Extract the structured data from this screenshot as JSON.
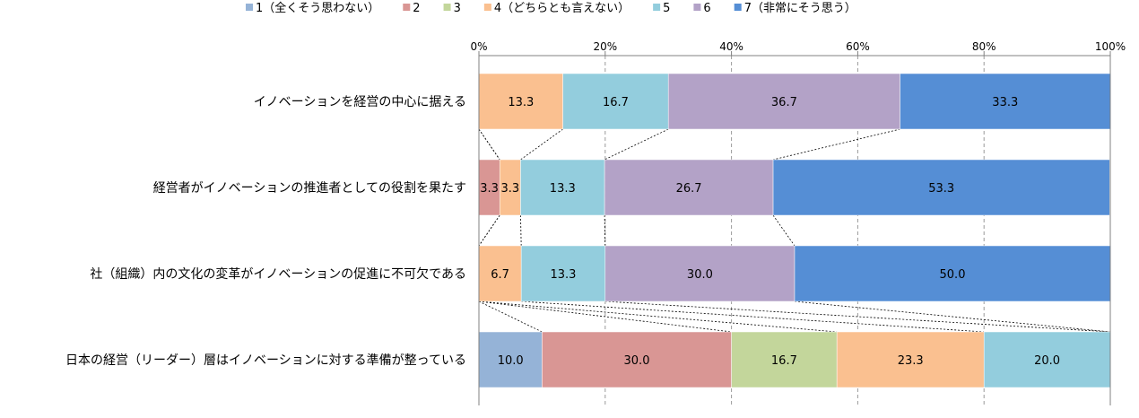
{
  "chart_data": {
    "type": "bar",
    "orientation": "horizontal",
    "stacked": "percent",
    "title": "",
    "xlabel": "",
    "ylabel": "",
    "xlim": [
      0,
      100
    ],
    "x_ticks": [
      "0%",
      "20%",
      "40%",
      "60%",
      "80%",
      "100%"
    ],
    "grid": true,
    "legend_position": "top",
    "categories": [
      "イノベーションを経営の中心に据える",
      "経営者がイノベーションの推進者としての役割を果たす",
      "社（組織）内の文化の変革がイノベーションの促進に不可欠である",
      "日本の経営（リーダー）層はイノベーションに対する準備が整っている"
    ],
    "series": [
      {
        "name": "1（全くそう思わない）",
        "color": "#95B3D7",
        "values": [
          0,
          0,
          0,
          10.0
        ],
        "labels": [
          "",
          "",
          "",
          "10.0"
        ]
      },
      {
        "name": "2",
        "color": "#D99694",
        "values": [
          0,
          3.3,
          0,
          30.0
        ],
        "labels": [
          "",
          "3.3",
          "",
          "30.0"
        ]
      },
      {
        "name": "3",
        "color": "#C3D69B",
        "values": [
          0,
          0,
          0,
          16.7
        ],
        "labels": [
          "",
          "",
          "",
          "16.7"
        ]
      },
      {
        "name": "4（どちらとも言えない）",
        "color": "#FAC090",
        "values": [
          13.3,
          3.3,
          6.7,
          23.3
        ],
        "labels": [
          "13.3",
          "3.3",
          "6.7",
          "23.3"
        ]
      },
      {
        "name": "5",
        "color": "#93CDDD",
        "values": [
          16.7,
          13.3,
          13.3,
          20.0
        ],
        "labels": [
          "16.7",
          "13.3",
          "13.3",
          "20.0"
        ]
      },
      {
        "name": "6",
        "color": "#B3A2C7",
        "values": [
          36.7,
          26.7,
          30.0,
          0
        ],
        "labels": [
          "36.7",
          "26.7",
          "30.0",
          ""
        ]
      },
      {
        "name": "7（非常にそう思う）",
        "color": "#558ED5",
        "values": [
          33.3,
          53.3,
          50.0,
          0
        ],
        "labels": [
          "33.3",
          "53.3",
          "50.0",
          ""
        ]
      }
    ]
  }
}
